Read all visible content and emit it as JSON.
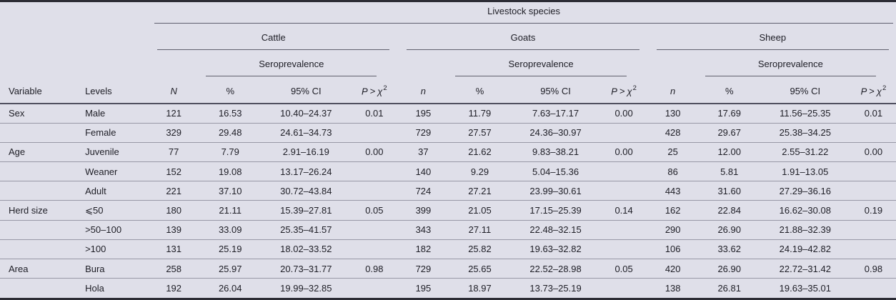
{
  "colors": {
    "background": "#dfdfe9",
    "text": "#1e1e26",
    "rule_dark": "#2c2c35",
    "rule_mid": "#60606e",
    "rule_head": "#50505f",
    "rule_light": "#9898a6"
  },
  "header": {
    "livestock_species": "Livestock species",
    "seroprevalence": "Seroprevalence",
    "variable": "Variable",
    "levels": "Levels",
    "species": [
      {
        "name": "Cattle",
        "count_label": "N"
      },
      {
        "name": "Goats",
        "count_label": "n"
      },
      {
        "name": "Sheep",
        "count_label": "n"
      }
    ],
    "stat": {
      "pct": "%",
      "ci": "95% CI",
      "p_p": "P",
      "p_gt": ">",
      "p_chi": "χ",
      "p_sup": "2"
    }
  },
  "rows": [
    {
      "variable": "Sex",
      "level": "Male",
      "cattle": {
        "n": "121",
        "pct": "16.53",
        "ci": "10.40–24.37",
        "p": "0.01"
      },
      "goats": {
        "n": "195",
        "pct": "11.79",
        "ci": "7.63–17.17",
        "p": "0.00"
      },
      "sheep": {
        "n": "130",
        "pct": "17.69",
        "ci": "11.56–25.35",
        "p": "0.01"
      }
    },
    {
      "variable": "",
      "level": "Female",
      "cattle": {
        "n": "329",
        "pct": "29.48",
        "ci": "24.61–34.73",
        "p": ""
      },
      "goats": {
        "n": "729",
        "pct": "27.57",
        "ci": "24.36–30.97",
        "p": ""
      },
      "sheep": {
        "n": "428",
        "pct": "29.67",
        "ci": "25.38–34.25",
        "p": ""
      }
    },
    {
      "variable": "Age",
      "level": "Juvenile",
      "cattle": {
        "n": "77",
        "pct": "7.79",
        "ci": "2.91–16.19",
        "p": "0.00"
      },
      "goats": {
        "n": "37",
        "pct": "21.62",
        "ci": "9.83–38.21",
        "p": "0.00"
      },
      "sheep": {
        "n": "25",
        "pct": "12.00",
        "ci": "2.55–31.22",
        "p": "0.00"
      }
    },
    {
      "variable": "",
      "level": "Weaner",
      "cattle": {
        "n": "152",
        "pct": "19.08",
        "ci": "13.17–26.24",
        "p": ""
      },
      "goats": {
        "n": "140",
        "pct": "9.29",
        "ci": "5.04–15.36",
        "p": ""
      },
      "sheep": {
        "n": "86",
        "pct": "5.81",
        "ci": "1.91–13.05",
        "p": ""
      }
    },
    {
      "variable": "",
      "level": "Adult",
      "cattle": {
        "n": "221",
        "pct": "37.10",
        "ci": "30.72–43.84",
        "p": ""
      },
      "goats": {
        "n": "724",
        "pct": "27.21",
        "ci": "23.99–30.61",
        "p": ""
      },
      "sheep": {
        "n": "443",
        "pct": "31.60",
        "ci": "27.29–36.16",
        "p": ""
      }
    },
    {
      "variable": "Herd size",
      "level": "⩽50",
      "cattle": {
        "n": "180",
        "pct": "21.11",
        "ci": "15.39–27.81",
        "p": "0.05"
      },
      "goats": {
        "n": "399",
        "pct": "21.05",
        "ci": "17.15–25.39",
        "p": "0.14"
      },
      "sheep": {
        "n": "162",
        "pct": "22.84",
        "ci": "16.62–30.08",
        "p": "0.19"
      }
    },
    {
      "variable": "",
      "level": ">50–100",
      "cattle": {
        "n": "139",
        "pct": "33.09",
        "ci": "25.35–41.57",
        "p": ""
      },
      "goats": {
        "n": "343",
        "pct": "27.11",
        "ci": "22.48–32.15",
        "p": ""
      },
      "sheep": {
        "n": "290",
        "pct": "26.90",
        "ci": "21.88–32.39",
        "p": ""
      }
    },
    {
      "variable": "",
      "level": ">100",
      "cattle": {
        "n": "131",
        "pct": "25.19",
        "ci": "18.02–33.52",
        "p": ""
      },
      "goats": {
        "n": "182",
        "pct": "25.82",
        "ci": "19.63–32.82",
        "p": ""
      },
      "sheep": {
        "n": "106",
        "pct": "33.62",
        "ci": "24.19–42.82",
        "p": ""
      }
    },
    {
      "variable": "Area",
      "level": "Bura",
      "cattle": {
        "n": "258",
        "pct": "25.97",
        "ci": "20.73–31.77",
        "p": "0.98"
      },
      "goats": {
        "n": "729",
        "pct": "25.65",
        "ci": "22.52–28.98",
        "p": "0.05"
      },
      "sheep": {
        "n": "420",
        "pct": "26.90",
        "ci": "22.72–31.42",
        "p": "0.98"
      }
    },
    {
      "variable": "",
      "level": "Hola",
      "cattle": {
        "n": "192",
        "pct": "26.04",
        "ci": "19.99–32.85",
        "p": ""
      },
      "goats": {
        "n": "195",
        "pct": "18.97",
        "ci": "13.73–25.19",
        "p": ""
      },
      "sheep": {
        "n": "138",
        "pct": "26.81",
        "ci": "19.63–35.01",
        "p": ""
      }
    }
  ]
}
